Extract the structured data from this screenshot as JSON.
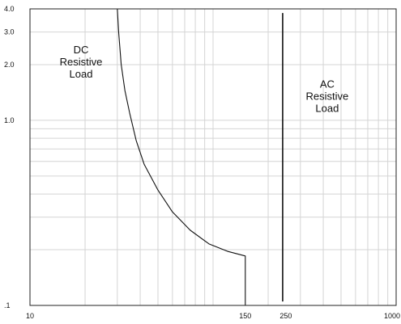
{
  "chart_data": {
    "type": "line",
    "title": "",
    "xlabel": "",
    "ylabel": "",
    "x_scale": "log",
    "y_scale": "log",
    "xlim": [
      10,
      1000
    ],
    "ylim": [
      0.1,
      4.0
    ],
    "grid": true,
    "x_ticks": [
      {
        "value": 10,
        "label": "10"
      },
      {
        "value": 150,
        "label": "150"
      },
      {
        "value": 250,
        "label": "250"
      },
      {
        "value": 1000,
        "label": "1000"
      }
    ],
    "y_ticks": [
      {
        "value": 0.1,
        "label": ".1"
      },
      {
        "value": 1.0,
        "label": "1.0"
      },
      {
        "value": 2.0,
        "label": "2.0"
      },
      {
        "value": 3.0,
        "label": "3.0"
      },
      {
        "value": 4.0,
        "label": "4.0"
      }
    ],
    "series": [
      {
        "points": [
          [
            30,
            4.0
          ],
          [
            30.5,
            3.0
          ],
          [
            31.5,
            2.0
          ],
          [
            33,
            1.45
          ],
          [
            35,
            1.1
          ],
          [
            38,
            0.78
          ],
          [
            42,
            0.58
          ],
          [
            50,
            0.42
          ],
          [
            60,
            0.32
          ],
          [
            75,
            0.255
          ],
          [
            95,
            0.215
          ],
          [
            120,
            0.196
          ],
          [
            150,
            0.185
          ],
          [
            150,
            0.1
          ]
        ]
      },
      {
        "points": [
          [
            240,
            3.8
          ],
          [
            240,
            0.105
          ]
        ]
      }
    ],
    "annotations": [
      {
        "lines": [
          "DC",
          "Resistive",
          "Load"
        ],
        "x": 19,
        "y": 2.3
      },
      {
        "lines": [
          "AC",
          "Resistive",
          "Load"
        ],
        "x": 420,
        "y": 1.5
      }
    ]
  }
}
